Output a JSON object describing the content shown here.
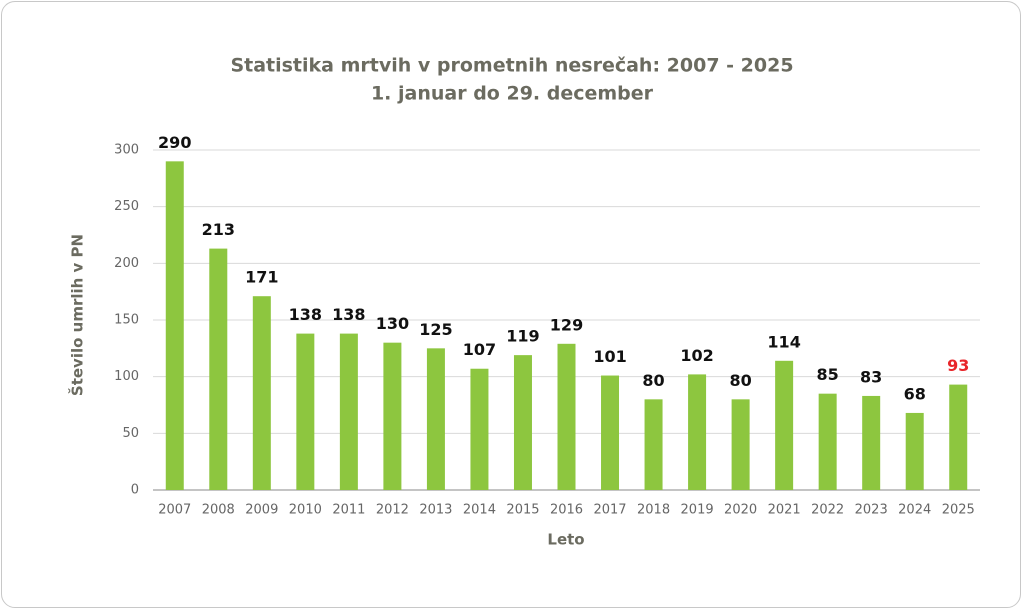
{
  "chart_data": {
    "type": "bar",
    "title": "Statistika mrtvih v prometnih nesrečah: 2007 - 2025",
    "subtitle": "1. januar do 29. december",
    "x_label": "Leto",
    "y_label": "Število umrlih v PN",
    "categories": [
      "2007",
      "2008",
      "2009",
      "2010",
      "2011",
      "2012",
      "2013",
      "2014",
      "2015",
      "2016",
      "2017",
      "2018",
      "2019",
      "2020",
      "2021",
      "2022",
      "2023",
      "2024",
      "2025"
    ],
    "values": [
      290,
      213,
      171,
      138,
      138,
      130,
      125,
      107,
      119,
      129,
      101,
      80,
      102,
      80,
      114,
      85,
      83,
      68,
      93
    ],
    "color": "#8dc63f",
    "label_colors": [
      "#111",
      "#111",
      "#111",
      "#111",
      "#111",
      "#111",
      "#111",
      "#111",
      "#111",
      "#111",
      "#111",
      "#111",
      "#111",
      "#111",
      "#111",
      "#111",
      "#111",
      "#111",
      "#e8262a"
    ],
    "ylim": [
      0,
      300
    ],
    "yticks": [
      0,
      50,
      100,
      150,
      200,
      250,
      300
    ],
    "grid": true
  }
}
